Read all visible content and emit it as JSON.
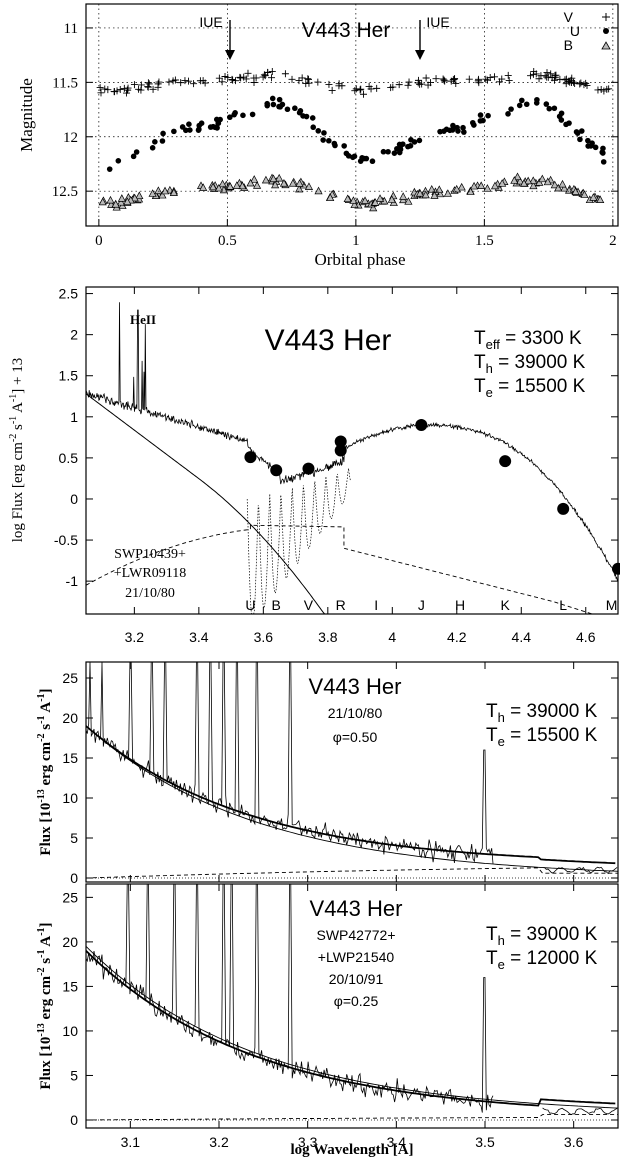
{
  "chart_data": [
    {
      "type": "scatter",
      "title": "V443 Her",
      "xlabel": "Orbital phase",
      "ylabel": "Magnitude",
      "xlim": [
        -0.05,
        2.02
      ],
      "ylim": [
        12.82,
        10.78
      ],
      "y_inverted": true,
      "xticks": [
        "0",
        "0.5",
        "1",
        "1.5",
        "2"
      ],
      "yticks": [
        "11",
        "11.5",
        "12",
        "12.5"
      ],
      "grid": "dotted",
      "legend": {
        "placement": "top-right",
        "entries": [
          "V",
          "U",
          "B"
        ]
      },
      "annotations": [
        {
          "text": "IUE",
          "x": 0.5
        },
        {
          "text": "IUE",
          "x": 1.25
        }
      ],
      "series": [
        {
          "name": "V",
          "marker": "plus",
          "mean": 11.5,
          "amplitude": 0.06
        },
        {
          "name": "U",
          "marker": "dot",
          "mean": 11.95,
          "amplitude": 0.25
        },
        {
          "name": "B",
          "marker": "triangle",
          "mean": 12.5,
          "amplitude": 0.1
        }
      ]
    },
    {
      "type": "line",
      "title": "V443 Her",
      "xlabel": "",
      "ylabel": "log Flux [erg cm^-2 s^-1 A^-1] + 13",
      "xlim": [
        3.05,
        4.7
      ],
      "ylim": [
        -1.4,
        2.58
      ],
      "xticks": [
        "3.2",
        "3.4",
        "3.6",
        "3.8",
        "4",
        "4.2",
        "4.4",
        "4.6"
      ],
      "yticks": [
        "-1",
        "-0.5",
        "0",
        "0.5",
        "1",
        "1.5",
        "2",
        "2.5"
      ],
      "params": [
        "Teff = 3300 K",
        "Th = 39000 K",
        "Te = 15500 K"
      ],
      "annotations": [
        "HeII",
        "SWP10439+",
        "+LWR09118",
        "21/10/80"
      ],
      "band_labels": [
        {
          "name": "U",
          "x": 3.56
        },
        {
          "name": "B",
          "x": 3.64
        },
        {
          "name": "V",
          "x": 3.74
        },
        {
          "name": "R",
          "x": 3.84
        },
        {
          "name": "I",
          "x": 3.95
        },
        {
          "name": "J",
          "x": 4.09
        },
        {
          "name": "H",
          "x": 4.21
        },
        {
          "name": "K",
          "x": 4.35
        },
        {
          "name": "L",
          "x": 4.53
        },
        {
          "name": "M",
          "x": 4.68
        }
      ],
      "photometry": {
        "x": [
          3.56,
          3.64,
          3.74,
          3.84,
          3.84,
          4.09,
          4.35,
          4.53,
          4.7
        ],
        "y": [
          0.51,
          0.35,
          0.37,
          0.59,
          0.7,
          0.9,
          0.46,
          -0.12,
          -0.85
        ]
      },
      "model_components": [
        "nebular (dashed)",
        "hot star (solid)",
        "giant (dotted)"
      ]
    },
    {
      "type": "line",
      "title": "V443 Her",
      "date": "21/10/80",
      "phase": "φ=0.50",
      "xlabel": "",
      "ylabel": "Flux [10^-13 erg cm^-2 s^-1 A^-1]",
      "xlim": [
        3.05,
        3.65
      ],
      "ylim": [
        -0.5,
        27
      ],
      "yticks": [
        "0",
        "5",
        "10",
        "15",
        "20",
        "25"
      ],
      "params": [
        "Th = 39000 K",
        "Te = 15500 K"
      ]
    },
    {
      "type": "line",
      "title": "V443 Her",
      "spectra": [
        "SWP42772+",
        "+LWP21540"
      ],
      "date": "20/10/91",
      "phase": "φ=0.25",
      "xlabel": "log Wavelength [A]",
      "ylabel": "Flux [10^-13 erg cm^-2 s^-1 A^-1]",
      "xlim": [
        3.05,
        3.65
      ],
      "ylim": [
        -0.9,
        26.5
      ],
      "xticks": [
        "3.1",
        "3.2",
        "3.3",
        "3.4",
        "3.5",
        "3.6"
      ],
      "yticks": [
        "0",
        "5",
        "10",
        "15",
        "20",
        "25"
      ],
      "params": [
        "Th = 39000 K",
        "Te = 12000 K"
      ]
    }
  ]
}
